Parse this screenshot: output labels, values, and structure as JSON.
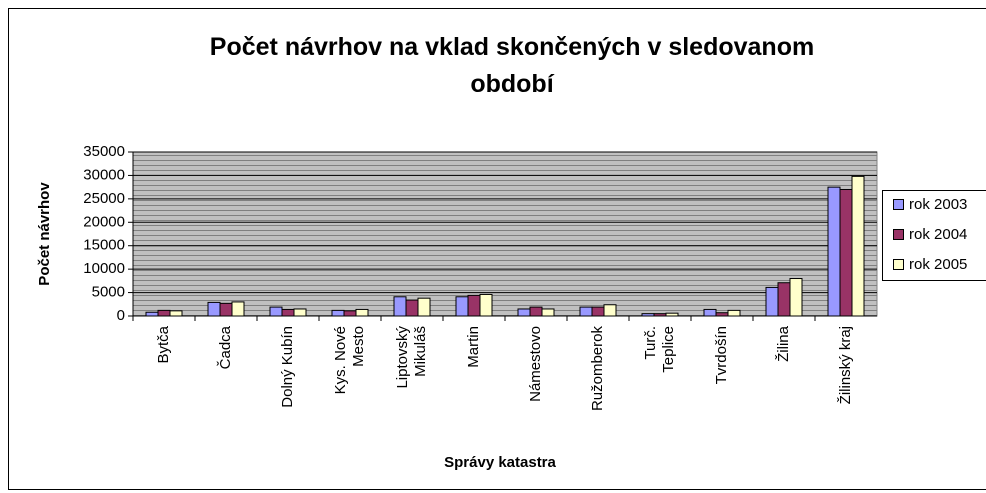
{
  "chart_data": {
    "type": "bar",
    "title": "Počet návrhov na vklad skončených v sledovanom\nobdobí",
    "x_label": "Správy katastra",
    "y_label": "Počet návrhov",
    "categories": [
      "Bytča",
      "Čadca",
      "Dolný Kubín",
      "Kys. Nové\nMesto",
      "Liptovský\nMikuláš",
      "Martin",
      "Námestovo",
      "Ružomberok",
      "Turč.\nTeplice",
      "Tvrdošín",
      "Žilina",
      "Žilinský kraj"
    ],
    "series": [
      {
        "name": "rok 2003",
        "color": "#9999ff",
        "values": [
          800,
          2900,
          1900,
          1200,
          4100,
          4100,
          1500,
          1900,
          500,
          1400,
          6100,
          27500
        ]
      },
      {
        "name": "rok 2004",
        "color": "#993366",
        "values": [
          1200,
          2700,
          1400,
          1100,
          3400,
          4400,
          1900,
          1900,
          500,
          700,
          7100,
          27000
        ]
      },
      {
        "name": "rok 2005",
        "color": "#ffffcc",
        "values": [
          1100,
          3000,
          1500,
          1400,
          3800,
          4600,
          1500,
          2400,
          600,
          1200,
          8000,
          29800
        ]
      }
    ],
    "ylim": [
      0,
      35000
    ],
    "yticks": [
      0,
      5000,
      10000,
      15000,
      20000,
      25000,
      30000,
      35000
    ],
    "grid": true,
    "legend": "right"
  }
}
